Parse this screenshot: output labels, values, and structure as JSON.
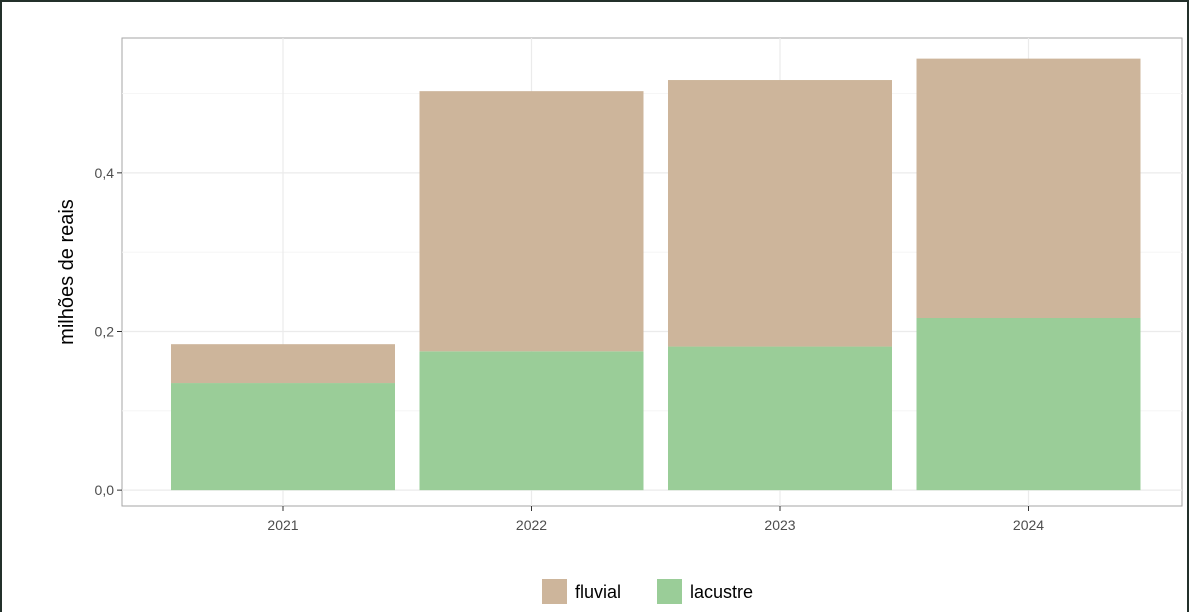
{
  "chart_data": {
    "type": "bar",
    "stacked": true,
    "categories": [
      "2021",
      "2022",
      "2023",
      "2024"
    ],
    "series": [
      {
        "name": "lacustre",
        "values": [
          0.135,
          0.175,
          0.181,
          0.217
        ],
        "color": "#9acd98"
      },
      {
        "name": "fluvial",
        "values": [
          0.049,
          0.328,
          0.336,
          0.327
        ],
        "color": "#cdb59b"
      }
    ],
    "title": "",
    "xlabel": "",
    "ylabel": "milhões de reais",
    "ylim": [
      -0.02,
      0.57
    ],
    "yticks": [
      0,
      0.2,
      0.4
    ],
    "ytick_labels": [
      "0,0",
      "0,2",
      "0,4"
    ],
    "grid": true,
    "legend_position": "bottom",
    "legend_order": [
      "fluvial",
      "lacustre"
    ]
  }
}
